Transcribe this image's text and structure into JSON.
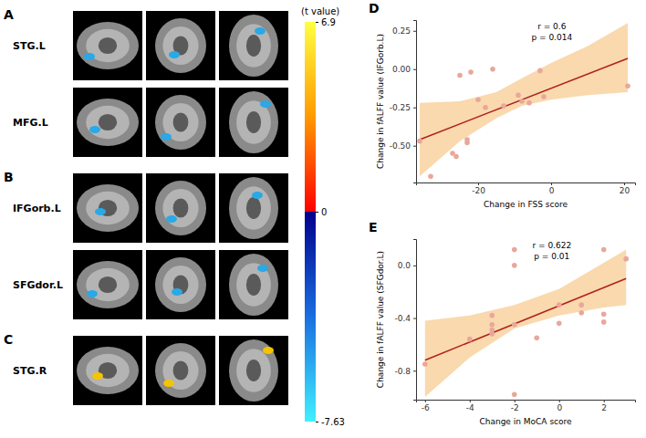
{
  "chart_data": [
    {
      "type": "brain_map",
      "panels": [
        {
          "label": "A",
          "regions": [
            "STG.L",
            "MFG.L"
          ]
        },
        {
          "label": "B",
          "regions": [
            "IFGorb.L",
            "SFGdor.L"
          ]
        },
        {
          "label": "C",
          "regions": [
            "STG.R"
          ]
        }
      ],
      "colorbar": {
        "title": "(t value)",
        "range": [
          -7.63,
          6.9
        ],
        "ticks": [
          6.9,
          0,
          -7.63
        ]
      }
    },
    {
      "type": "scatter",
      "label": "D",
      "x_label": "Change in FSS score",
      "y_label": "Change in fALFF value (IFGorb.L)",
      "annotations": [
        "r = 0.6",
        "p = 0.014"
      ],
      "x": [
        -36,
        -33,
        -27,
        -26,
        -25,
        -23,
        -23,
        -22,
        -20,
        -18,
        -16,
        -13,
        -9,
        -8,
        -6,
        -3,
        -2,
        21
      ],
      "values": [
        -0.47,
        -0.7,
        -0.55,
        -0.57,
        -0.04,
        -0.48,
        -0.46,
        -0.02,
        -0.2,
        -0.25,
        0.0,
        -0.24,
        -0.17,
        -0.21,
        -0.22,
        -0.01,
        -0.18,
        -0.11
      ],
      "fit": {
        "x": [
          -36,
          21
        ],
        "y": [
          -0.46,
          0.07
        ]
      },
      "band": {
        "x": [
          -36,
          -25,
          -15,
          -8,
          0,
          10,
          21
        ],
        "lower": [
          -0.7,
          -0.47,
          -0.32,
          -0.24,
          -0.2,
          -0.17,
          -0.15
        ],
        "upper": [
          -0.22,
          -0.21,
          -0.15,
          -0.06,
          0.04,
          0.15,
          0.3
        ]
      },
      "xlim": [
        -37,
        23
      ],
      "ylim": [
        -0.74,
        0.32
      ],
      "xticks": [
        -20,
        0,
        20
      ],
      "yticks": [
        {
          "value": -0.5,
          "label": "-0.50"
        },
        -0.25,
        {
          "value": 0,
          "label": "0.00"
        },
        0.25
      ],
      "color": "#e9a79b",
      "grid": false
    },
    {
      "type": "scatter",
      "label": "E",
      "x_label": "Change in MoCA score",
      "y_label": "Change in fALFF value (SFGdor.L)",
      "annotations": [
        "r = 0.622",
        "p = 0.01"
      ],
      "x": [
        -6,
        -4,
        -3,
        -3,
        -3,
        -3,
        -2,
        -2,
        -2,
        -2,
        -1,
        0,
        0,
        1,
        1,
        2,
        2,
        2,
        3
      ],
      "values": [
        -0.75,
        -0.56,
        -0.38,
        -0.45,
        -0.49,
        -0.52,
        0.12,
        0.0,
        -0.45,
        -0.98,
        -0.55,
        -0.3,
        -0.44,
        -0.3,
        -0.36,
        0.12,
        -0.37,
        -0.43,
        0.05
      ],
      "fit": {
        "x": [
          -6,
          3
        ],
        "y": [
          -0.72,
          -0.1
        ]
      },
      "band": {
        "x": [
          -6,
          -4,
          -2,
          0,
          2,
          3
        ],
        "lower": [
          -1.0,
          -0.7,
          -0.48,
          -0.38,
          -0.32,
          -0.3
        ],
        "upper": [
          -0.42,
          -0.38,
          -0.3,
          -0.18,
          0.02,
          0.12
        ]
      },
      "xlim": [
        -6.4,
        3.4
      ],
      "ylim": [
        -1.02,
        0.2
      ],
      "xticks": [
        -6,
        -4,
        -2,
        0,
        2
      ],
      "yticks": [
        -0.8,
        -0.4,
        {
          "value": 0,
          "label": "0.0"
        }
      ],
      "color": "#e9a79b",
      "grid": false
    }
  ]
}
